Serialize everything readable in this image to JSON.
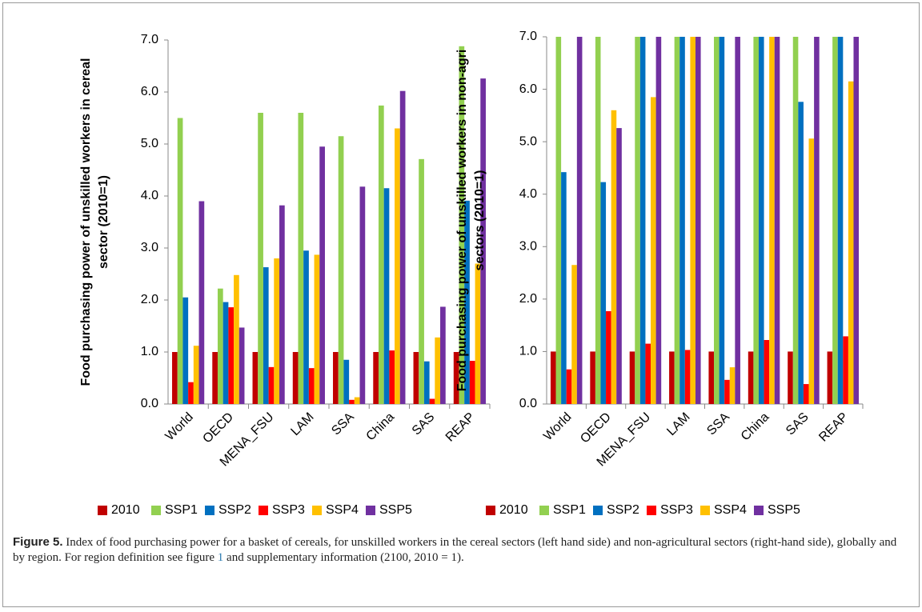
{
  "chart_data": [
    {
      "type": "bar",
      "ylabel": [
        "Food purchasing power of unskilled workers in cereal",
        "sector (2010=1)"
      ],
      "categories": [
        "World",
        "OECD",
        "MENA_FSU",
        "LAM",
        "SSA",
        "China",
        "SAS",
        "REAP"
      ],
      "series": [
        {
          "name": "2010",
          "color": "#c00000",
          "values": [
            1,
            1,
            1,
            1,
            1,
            1,
            1,
            1
          ]
        },
        {
          "name": "SSP1",
          "color": "#92d050",
          "values": [
            5.5,
            2.22,
            5.6,
            5.6,
            5.15,
            5.74,
            4.71,
            6.88
          ]
        },
        {
          "name": "SSP2",
          "color": "#0070c0",
          "values": [
            2.05,
            1.96,
            2.63,
            2.95,
            0.85,
            4.15,
            0.82,
            3.91
          ]
        },
        {
          "name": "SSP3",
          "color": "#ff0000",
          "values": [
            0.42,
            1.86,
            0.71,
            0.69,
            0.08,
            1.03,
            0.1,
            0.83
          ]
        },
        {
          "name": "SSP4",
          "color": "#ffc000",
          "values": [
            1.12,
            2.48,
            2.8,
            2.87,
            0.13,
            5.3,
            1.28,
            2.7
          ]
        },
        {
          "name": "SSP5",
          "color": "#7030a0",
          "values": [
            3.9,
            1.47,
            3.82,
            4.95,
            4.18,
            6.02,
            1.87,
            6.26
          ]
        }
      ],
      "ylim": [
        0,
        7
      ],
      "yticks": [
        {
          "value": 0,
          "label": "0.0"
        },
        {
          "value": 1,
          "label": "1.0"
        },
        {
          "value": 2,
          "label": "2.0"
        },
        {
          "value": 3,
          "label": "3.0"
        },
        {
          "value": 4,
          "label": "4.0"
        },
        {
          "value": 5,
          "label": "5.0"
        },
        {
          "value": 6,
          "label": "6.0"
        },
        {
          "value": 7,
          "label": "7.0"
        }
      ],
      "legend": "bottom"
    },
    {
      "type": "bar",
      "ylabel": [
        "Food purchasing power of unskilled workers in non-agri",
        "sectors (2010=1)"
      ],
      "categories": [
        "World",
        "OECD",
        "MENA_FSU",
        "LAM",
        "SSA",
        "China",
        "SAS",
        "REAP"
      ],
      "series": [
        {
          "name": "2010",
          "color": "#c00000",
          "values": [
            1,
            1,
            1,
            1,
            1,
            1,
            1,
            1
          ]
        },
        {
          "name": "SSP1",
          "color": "#92d050",
          "values": [
            7,
            7,
            7,
            7,
            7,
            7,
            7,
            7
          ]
        },
        {
          "name": "SSP2",
          "color": "#0070c0",
          "values": [
            4.42,
            4.23,
            7,
            7,
            7,
            7,
            5.76,
            7
          ]
        },
        {
          "name": "SSP3",
          "color": "#ff0000",
          "values": [
            0.66,
            1.77,
            1.15,
            1.03,
            0.46,
            1.22,
            0.38,
            1.29
          ]
        },
        {
          "name": "SSP4",
          "color": "#ffc000",
          "values": [
            2.65,
            5.6,
            5.85,
            7,
            0.7,
            7,
            5.06,
            6.15
          ]
        },
        {
          "name": "SSP5",
          "color": "#7030a0",
          "values": [
            7,
            5.26,
            7,
            7,
            7,
            7,
            7,
            7
          ]
        }
      ],
      "ylim": [
        0,
        7
      ],
      "yticks": [
        {
          "value": 0,
          "label": "0.0"
        },
        {
          "value": 1,
          "label": "1.0"
        },
        {
          "value": 2,
          "label": "2.0"
        },
        {
          "value": 3,
          "label": "3.0"
        },
        {
          "value": 4,
          "label": "4.0"
        },
        {
          "value": 5,
          "label": "5.0"
        },
        {
          "value": 6,
          "label": "6.0"
        },
        {
          "value": 7,
          "label": "7.0"
        }
      ],
      "legend": "bottom"
    }
  ],
  "caption": {
    "label": "Figure 5.",
    "text": "Index of food purchasing power for a basket of cereals, for unskilled workers in the cereal sectors (left hand side) and non-agricultural sectors (right-hand side), globally and by region. For region definition see figure ",
    "link": "1",
    "text_end": " and supplementary information (2100, 2010 = 1)."
  }
}
